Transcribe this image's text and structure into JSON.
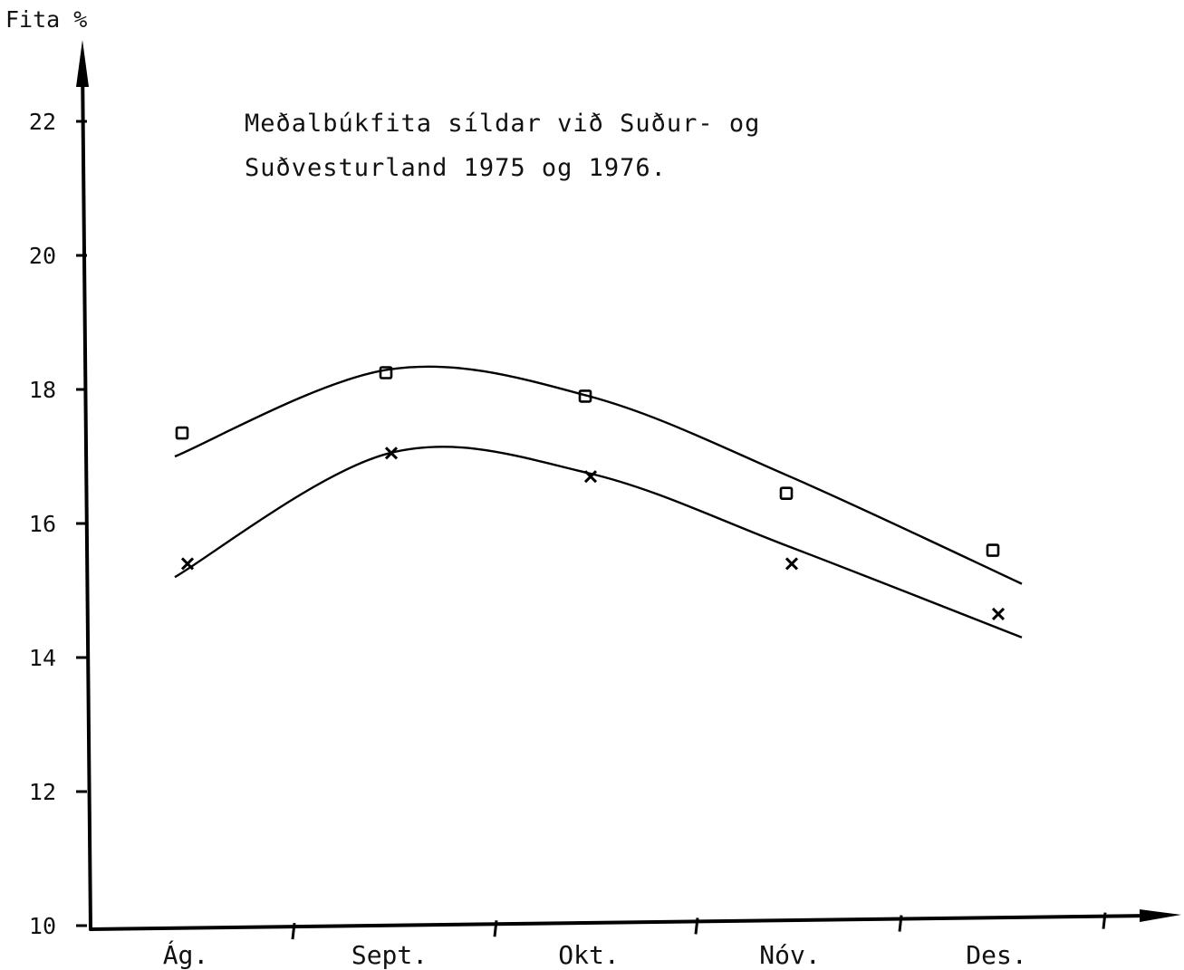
{
  "chart_data": {
    "type": "scatter",
    "title_lines": [
      "Meðalbúkfita síldar við Suður- og",
      "Suðvesturland 1975 og 1976."
    ],
    "ylabel": "Fita %",
    "xlabel": "",
    "categories": [
      "Ág.",
      "Sept.",
      "Okt.",
      "Nóv.",
      "Des."
    ],
    "ylim": [
      10,
      23
    ],
    "yticks": [
      "10",
      "12",
      "14",
      "16",
      "18",
      "20",
      "22"
    ],
    "grid": false,
    "series": [
      {
        "marker": "square",
        "points": [
          {
            "x": "Ág.",
            "y": 17.35
          },
          {
            "x": "Sept.",
            "y": 18.25
          },
          {
            "x": "Okt.",
            "y": 17.9
          },
          {
            "x": "Nóv.",
            "y": 16.45
          },
          {
            "x": "Des.",
            "y": 15.6
          }
        ],
        "fitted_curve": [
          {
            "x": "Ág.",
            "y": 17.0
          },
          {
            "x": "Sept.",
            "y": 18.3
          },
          {
            "x": "Okt.",
            "y": 17.9
          },
          {
            "x": "Nóv.",
            "y": 16.7
          },
          {
            "x": "Des.",
            "y": 15.1
          }
        ]
      },
      {
        "marker": "cross",
        "points": [
          {
            "x": "Ág.",
            "y": 15.4
          },
          {
            "x": "Sept.",
            "y": 17.05
          },
          {
            "x": "Okt.",
            "y": 16.7
          },
          {
            "x": "Nóv.",
            "y": 15.4
          },
          {
            "x": "Des.",
            "y": 14.65
          }
        ],
        "fitted_curve": [
          {
            "x": "Ág.",
            "y": 15.2
          },
          {
            "x": "Sept.",
            "y": 17.05
          },
          {
            "x": "Okt.",
            "y": 16.75
          },
          {
            "x": "Nóv.",
            "y": 15.65
          },
          {
            "x": "Des.",
            "y": 14.3
          }
        ]
      }
    ]
  }
}
